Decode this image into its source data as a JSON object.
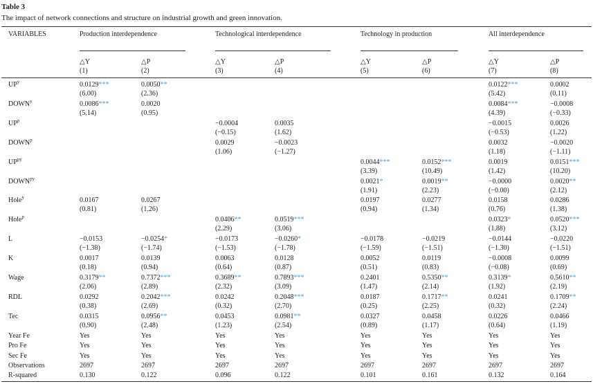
{
  "title": "Table 3",
  "caption": "The impact of network connections and structure on industrial growth and green innovation.",
  "header": {
    "variables": "VARIABLES",
    "groups": [
      "Production interdependence",
      "Technological interdependence",
      "Technology in production",
      "All interdependence"
    ],
    "columns": [
      {
        "dep": "△Y",
        "num": "(1)"
      },
      {
        "dep": "△P",
        "num": "(2)"
      },
      {
        "dep": "△Y",
        "num": "(3)"
      },
      {
        "dep": "△P",
        "num": "(4)"
      },
      {
        "dep": "△Y",
        "num": "(5)"
      },
      {
        "dep": "△P",
        "num": "(6)"
      },
      {
        "dep": "△Y",
        "num": "(7)"
      },
      {
        "dep": "△P",
        "num": "(8)"
      }
    ]
  },
  "rows": [
    {
      "var": {
        "base": "UP",
        "sup": "y"
      },
      "cells": [
        {
          "c": "0.0129",
          "s": "***",
          "t": "(6.00)"
        },
        {
          "c": "0.0050",
          "s": "**",
          "t": "(2.36)"
        },
        null,
        null,
        null,
        null,
        {
          "c": "0.0122",
          "s": "***",
          "t": "(5.42)"
        },
        {
          "c": "0.0002",
          "t": "(0.11)"
        }
      ]
    },
    {
      "var": {
        "base": "DOWN",
        "sup": "y"
      },
      "cells": [
        {
          "c": "0.0086",
          "s": "***",
          "t": "(5.14)"
        },
        {
          "c": "0.0020",
          "t": "(0.95)"
        },
        null,
        null,
        null,
        null,
        {
          "c": "0.0084",
          "s": "***",
          "t": "(4.39)"
        },
        {
          "c": "−0.0008",
          "t": "(−0.33)"
        }
      ]
    },
    {
      "var": {
        "base": "UP",
        "sup": "p"
      },
      "cells": [
        null,
        null,
        {
          "c": "−0.0004",
          "t": "(−0.15)"
        },
        {
          "c": "0.0035",
          "t": "(1.62)"
        },
        null,
        null,
        {
          "c": "−0.0015",
          "t": "(−0.53)"
        },
        {
          "c": "0.0026",
          "t": "(1.22)"
        }
      ]
    },
    {
      "var": {
        "base": "DOWN",
        "sup": "p"
      },
      "cells": [
        null,
        null,
        {
          "c": "0.0029",
          "t": "(1.06)"
        },
        {
          "c": "−0.0023",
          "t": "(−1.27)"
        },
        null,
        null,
        {
          "c": "0.0032",
          "t": "(1.18)"
        },
        {
          "c": "−0.0020",
          "t": "(−1.11)"
        }
      ]
    },
    {
      "var": {
        "base": "UP",
        "sup": "py"
      },
      "cells": [
        null,
        null,
        null,
        null,
        {
          "c": "0.0044",
          "s": "***",
          "t": "(3.39)"
        },
        {
          "c": "0.0152",
          "s": "***",
          "t": "(10.49)"
        },
        {
          "c": "0.0019",
          "t": "(1.42)"
        },
        {
          "c": "0.0151",
          "s": "***",
          "t": "(10.20)"
        }
      ]
    },
    {
      "var": {
        "base": "DOWN",
        "sup": "py"
      },
      "cells": [
        null,
        null,
        null,
        null,
        {
          "c": "0.0021",
          "s": "*",
          "t": "(1.91)"
        },
        {
          "c": "0.0019",
          "s": "**",
          "t": "(2.23)"
        },
        {
          "c": "−0.0000",
          "t": "(−0.00)"
        },
        {
          "c": "0.0020",
          "s": "**",
          "t": "(2.12)"
        }
      ]
    },
    {
      "var": {
        "base": "Hole",
        "sup": "y"
      },
      "cells": [
        {
          "c": "0.0167",
          "t": "(0.81)"
        },
        {
          "c": "0.0267",
          "t": "(1.26)"
        },
        null,
        null,
        {
          "c": "0.0197",
          "t": "(0.94)"
        },
        {
          "c": "0.0277",
          "t": "(1.34)"
        },
        {
          "c": "0.0158",
          "t": "(0.76)"
        },
        {
          "c": "0.0286",
          "t": "(1.38)"
        }
      ]
    },
    {
      "var": {
        "base": "Hole",
        "sup": "p"
      },
      "cells": [
        null,
        null,
        {
          "c": "0.0406",
          "s": "**",
          "t": "(2.29)"
        },
        {
          "c": "0.0519",
          "s": "***",
          "t": "(3.06)"
        },
        null,
        null,
        {
          "c": "0.0323",
          "s": "*",
          "t": "(1.88)"
        },
        {
          "c": "0.0520",
          "s": "***",
          "t": "(3.12)"
        }
      ]
    },
    {
      "var": {
        "base": "L"
      },
      "cells": [
        {
          "c": "−0.0153",
          "t": "(−1.38)"
        },
        {
          "c": "−0.0254",
          "s": "*",
          "t": "(−1.74)"
        },
        {
          "c": "−0.0173",
          "t": "(−1.53)"
        },
        {
          "c": "−0.0260",
          "s": "*",
          "t": "(−1.78)"
        },
        {
          "c": "−0.0178",
          "t": "(−1.59)"
        },
        {
          "c": "−0.0219",
          "t": "(−1.51)"
        },
        {
          "c": "−0.0144",
          "t": "(−1.30)"
        },
        {
          "c": "−0.0220",
          "t": "(−1.51)"
        }
      ]
    },
    {
      "var": {
        "base": "K"
      },
      "cells": [
        {
          "c": "0.0017",
          "t": "(0.18)"
        },
        {
          "c": "0.0139",
          "t": "(0.94)"
        },
        {
          "c": "0.0063",
          "t": "(0.64)"
        },
        {
          "c": "0.0128",
          "t": "(0.87)"
        },
        {
          "c": "0.0052",
          "t": "(0.51)"
        },
        {
          "c": "0.0119",
          "t": "(0.83)"
        },
        {
          "c": "−0.0008",
          "t": "(−0.08)"
        },
        {
          "c": "0.0099",
          "t": "(0.69)"
        }
      ]
    },
    {
      "var": {
        "base": "Wage"
      },
      "cells": [
        {
          "c": "0.3179",
          "s": "**",
          "t": "(2.06)"
        },
        {
          "c": "0.7372",
          "s": "***",
          "t": "(2.89)"
        },
        {
          "c": "0.3689",
          "s": "**",
          "t": "(2.32)"
        },
        {
          "c": "0.7893",
          "s": "***",
          "t": "(3.09)"
        },
        {
          "c": "0.2401",
          "t": "(1.47)"
        },
        {
          "c": "0.5350",
          "s": "**",
          "t": "(2.14)"
        },
        {
          "c": "0.3139",
          "s": "*",
          "t": "(1.92)"
        },
        {
          "c": "0.5610",
          "s": "**",
          "t": "(2.19)"
        }
      ]
    },
    {
      "var": {
        "base": "RDL"
      },
      "cells": [
        {
          "c": "0.0292",
          "t": "(0.38)"
        },
        {
          "c": "0.2042",
          "s": "***",
          "t": "(2.69)"
        },
        {
          "c": "0.0242",
          "t": "(0.32)"
        },
        {
          "c": "0.2048",
          "s": "***",
          "t": "(2.70)"
        },
        {
          "c": "0.0187",
          "t": "(0.25)"
        },
        {
          "c": "0.1717",
          "s": "**",
          "t": "(2.25)"
        },
        {
          "c": "0.0241",
          "t": "(0.32)"
        },
        {
          "c": "0.1709",
          "s": "**",
          "t": "(2.24)"
        }
      ]
    },
    {
      "var": {
        "base": "Tec"
      },
      "cells": [
        {
          "c": "0.0315",
          "t": "(0.90)"
        },
        {
          "c": "0.0956",
          "s": "**",
          "t": "(2.48)"
        },
        {
          "c": "0.0453",
          "t": "(1.23)"
        },
        {
          "c": "0.0981",
          "s": "**",
          "t": "(2.54)"
        },
        {
          "c": "0.0327",
          "t": "(0.89)"
        },
        {
          "c": "0.0458",
          "t": "(1.17)"
        },
        {
          "c": "0.0226",
          "t": "(0.64)"
        },
        {
          "c": "0.0466",
          "t": "(1.19)"
        }
      ]
    }
  ],
  "footer": [
    {
      "label": "Year Fe",
      "values": [
        "Yes",
        "Yes",
        "Yes",
        "Yes",
        "Yes",
        "Yes",
        "Yes",
        "Yes"
      ]
    },
    {
      "label": "Pro Fe",
      "values": [
        "Yes",
        "Yes",
        "Yes",
        "Yes",
        "Yes",
        "Yes",
        "Yes",
        "Yes"
      ]
    },
    {
      "label": "Sec Fe",
      "values": [
        "Yes",
        "Yes",
        "Yes",
        "Yes",
        "Yes",
        "Yes",
        "Yes",
        "Yes"
      ]
    },
    {
      "label": "Observations",
      "values": [
        "2697",
        "2697",
        "2697",
        "2697",
        "2697",
        "2697",
        "2697",
        "2697"
      ]
    },
    {
      "label": "R-squared",
      "values": [
        "0.130",
        "0.122",
        "0.096",
        "0.122",
        "0.101",
        "0.161",
        "0.132",
        "0.164"
      ]
    }
  ]
}
